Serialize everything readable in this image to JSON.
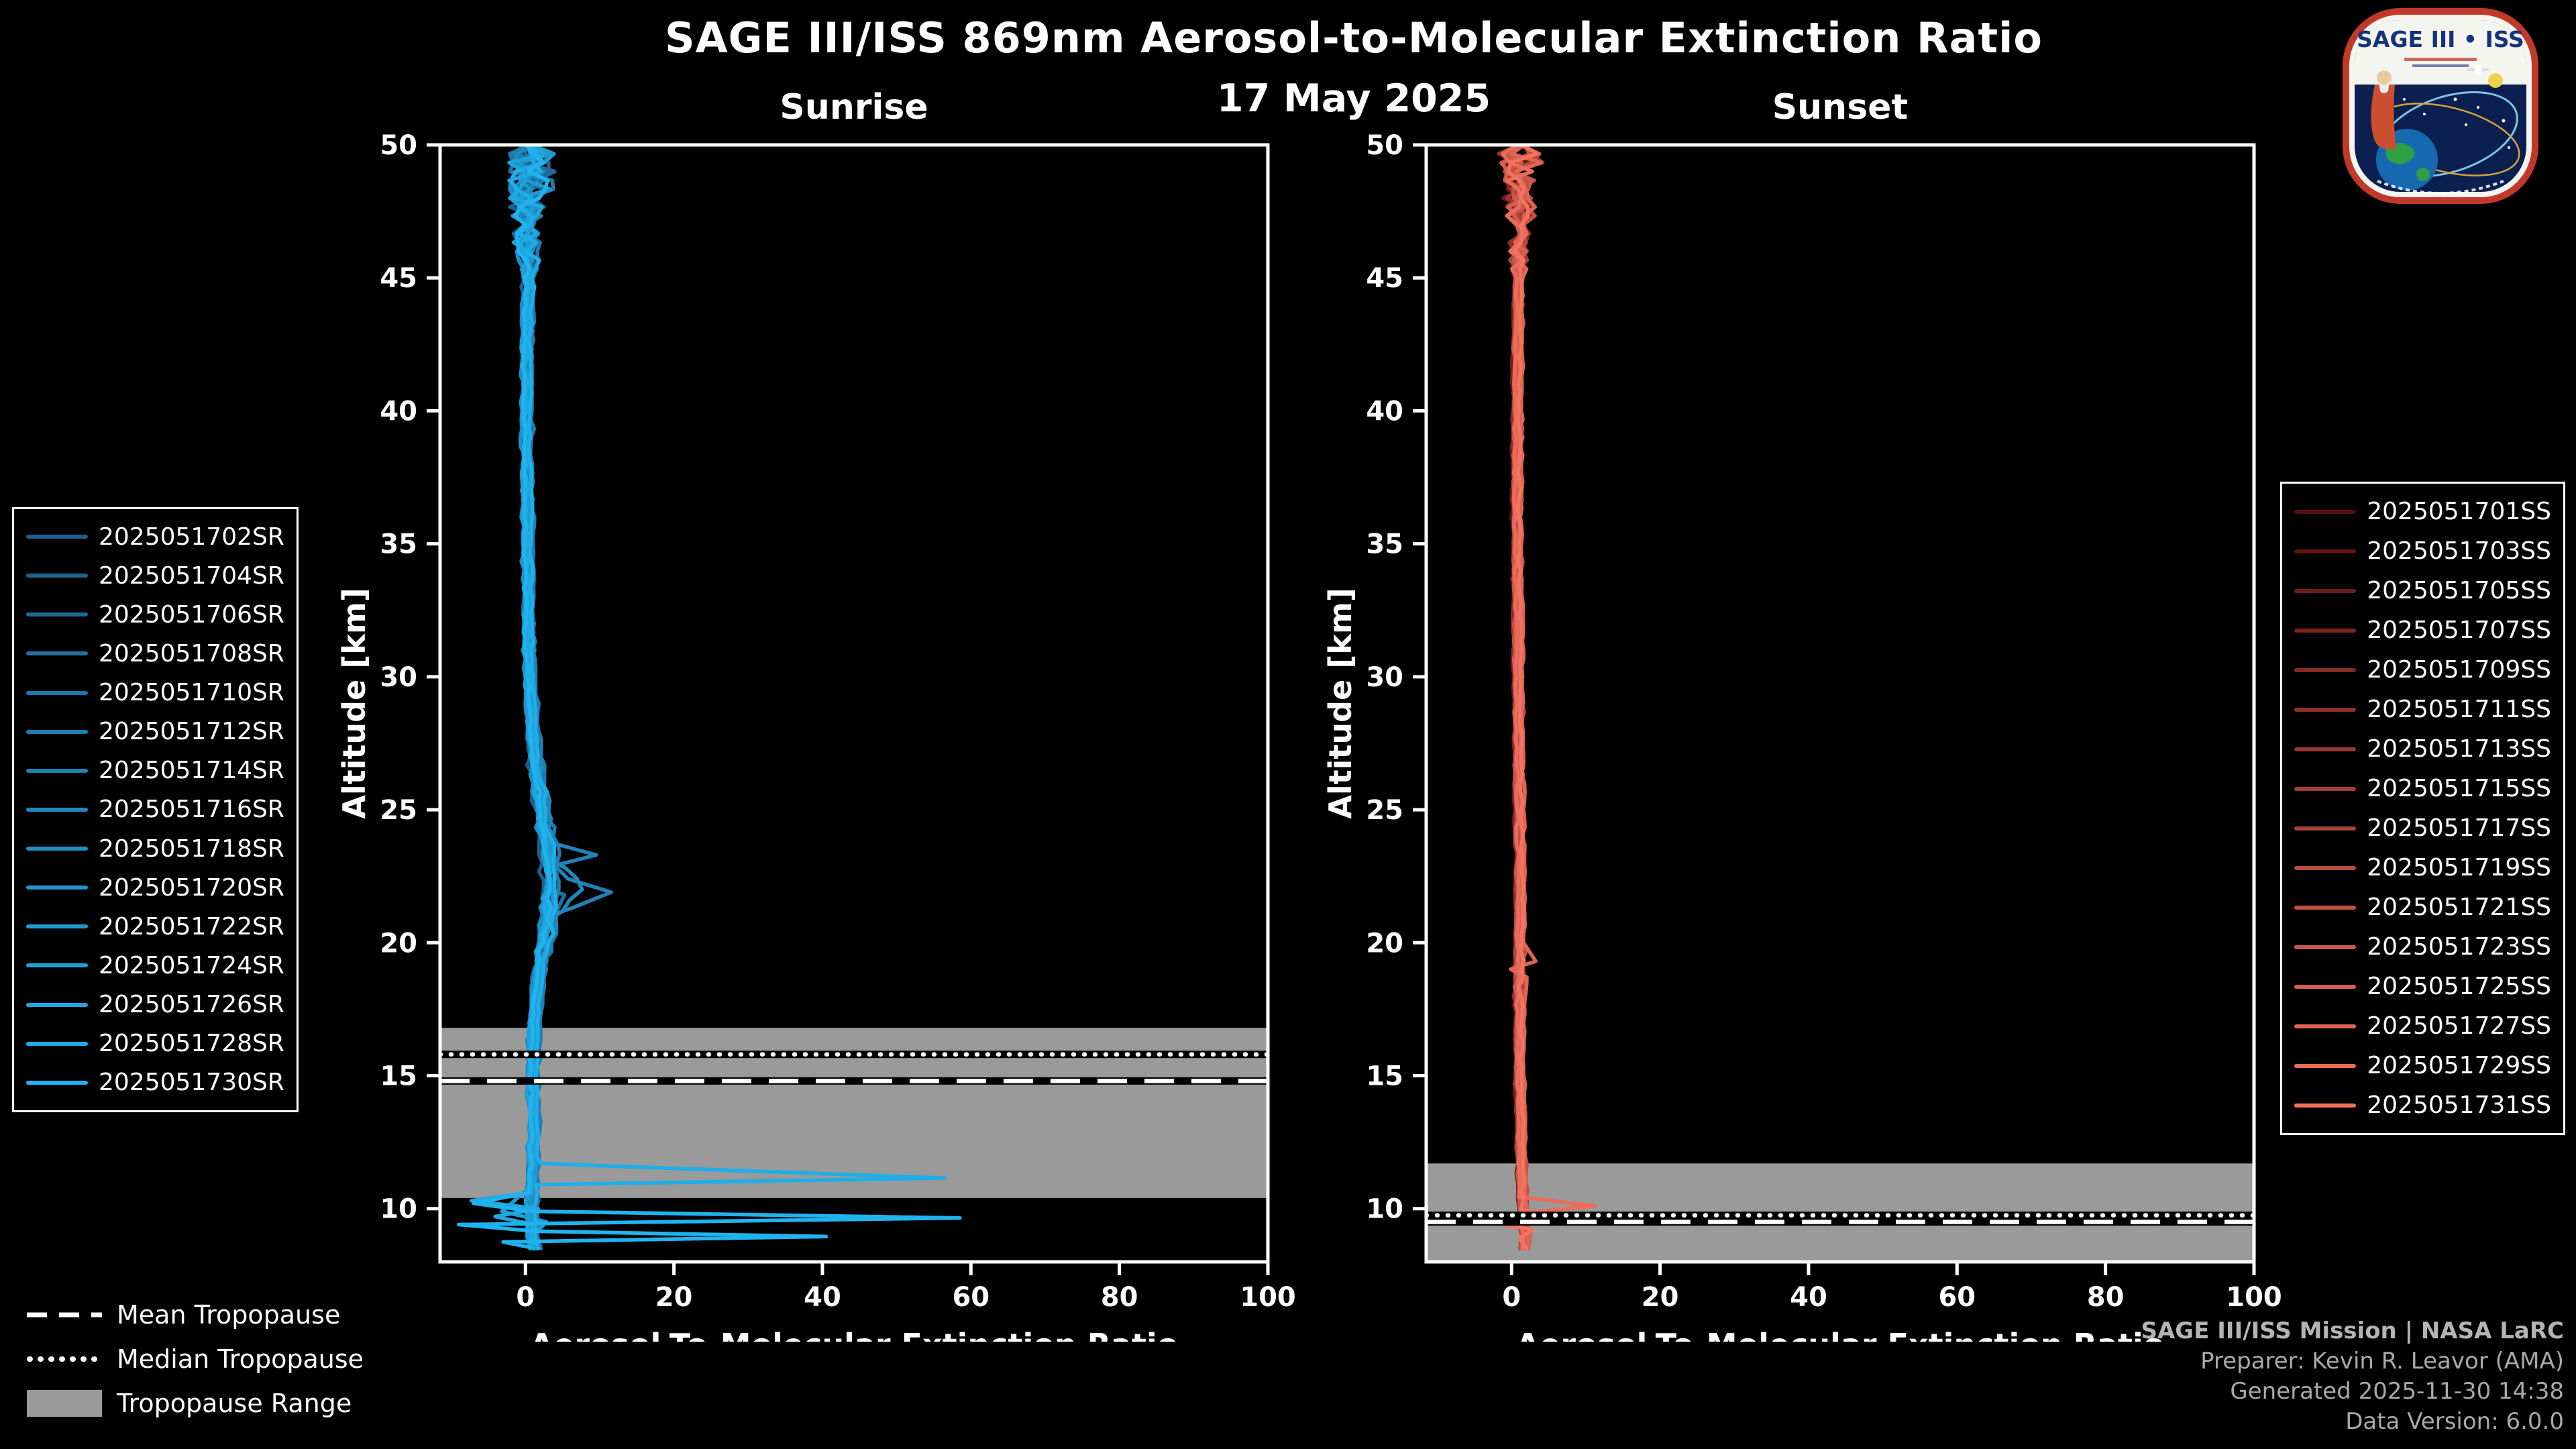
{
  "header": {
    "title": "SAGE III/ISS 869nm Aerosol-to-Molecular Extinction Ratio",
    "date": "17 May 2025"
  },
  "logo": {
    "title": "SAGE III • ISS"
  },
  "tropopause_legend": {
    "mean": "Mean Tropopause",
    "median": "Median Tropopause",
    "range": "Tropopause Range"
  },
  "credits": [
    "SAGE III/ISS Mission | NASA LaRC",
    "Preparer: Kevin R. Leavor (AMA)",
    "Generated 2025-11-30 14:38",
    "Data Version: 6.0.0"
  ],
  "chart_data": [
    {
      "type": "line",
      "id": "sunrise",
      "title": "Sunrise",
      "xlabel": "Aerosol-To-Molecular Extinction Ratio",
      "ylabel": "Altitude [km]",
      "xlim": [
        -11.5,
        100
      ],
      "ylim": [
        8,
        50
      ],
      "xticks": [
        0,
        20,
        40,
        60,
        80,
        100
      ],
      "yticks": [
        10,
        15,
        20,
        25,
        30,
        35,
        40,
        45,
        50
      ],
      "band_color": "#9a9a9a",
      "tropopause": {
        "mean": 14.8,
        "median": 15.8,
        "range": [
          10.4,
          16.8
        ]
      },
      "noise": {
        "base": 0.28,
        "bump": [
          19,
          27
        ],
        "bump_amp": 0.55,
        "top_start": 44.5,
        "top_rate": 0.6
      },
      "base_profile": [
        [
          8.5,
          1.2
        ],
        [
          9.0,
          0.8
        ],
        [
          9.5,
          0.9
        ],
        [
          10.0,
          0.7
        ],
        [
          11.0,
          0.9
        ],
        [
          12.0,
          1.0
        ],
        [
          13.0,
          1.1
        ],
        [
          14.0,
          1.0
        ],
        [
          15.0,
          0.9
        ],
        [
          16.0,
          1.0
        ],
        [
          17.0,
          1.1
        ],
        [
          18.0,
          1.4
        ],
        [
          19.0,
          1.8
        ],
        [
          20.0,
          2.4
        ],
        [
          21.0,
          2.9
        ],
        [
          22.0,
          3.2
        ],
        [
          23.0,
          3.0
        ],
        [
          24.0,
          2.6
        ],
        [
          25.0,
          2.1
        ],
        [
          26.0,
          1.6
        ],
        [
          27.0,
          1.2
        ],
        [
          28.0,
          0.9
        ],
        [
          30.0,
          0.6
        ],
        [
          32.0,
          0.45
        ],
        [
          35.0,
          0.3
        ],
        [
          38.0,
          0.25
        ],
        [
          40.0,
          0.2
        ],
        [
          42.0,
          0.25
        ],
        [
          45.0,
          0.35
        ],
        [
          47.0,
          0.4
        ],
        [
          50.0,
          0.5
        ]
      ],
      "series": [
        {
          "name": "2025051702SR",
          "color": "#1f5f8b",
          "scale": 0.9
        },
        {
          "name": "2025051704SR",
          "color": "#1f6592",
          "scale": 1.0
        },
        {
          "name": "2025051706SR",
          "color": "#1f6b99",
          "scale": 0.85
        },
        {
          "name": "2025051708SR",
          "color": "#1f71a1",
          "scale": 1.1,
          "overrides": [
            [
              21.0,
              4.2
            ],
            [
              21.8,
              5.6
            ],
            [
              22.6,
              4.6
            ],
            [
              23.4,
              3.4
            ]
          ]
        },
        {
          "name": "2025051710SR",
          "color": "#1f77a8",
          "scale": 0.95
        },
        {
          "name": "2025051712SR",
          "color": "#1f7daf",
          "scale": 1.2
        },
        {
          "name": "2025051714SR",
          "color": "#1f83b6",
          "scale": 1.15,
          "overrides": [
            [
              20.5,
              3.2
            ],
            [
              21.3,
              6.5
            ],
            [
              21.9,
              11.8
            ],
            [
              22.4,
              6.0
            ],
            [
              22.9,
              4.2
            ],
            [
              23.3,
              9.8
            ],
            [
              23.8,
              3.2
            ],
            [
              24.4,
              2.4
            ]
          ]
        },
        {
          "name": "2025051716SR",
          "color": "#1f89bd",
          "scale": 1.3,
          "overrides": [
            [
              21.2,
              4.8
            ],
            [
              22.0,
              7.4
            ],
            [
              22.8,
              5.2
            ]
          ]
        },
        {
          "name": "2025051718SR",
          "color": "#1f8fc5",
          "scale": 1.05
        },
        {
          "name": "2025051720SR",
          "color": "#1f95cc",
          "scale": 1.25
        },
        {
          "name": "2025051722SR",
          "color": "#1f9cd3",
          "scale": 0.95,
          "overrides": [
            [
              9.9,
              -3.5
            ],
            [
              9.5,
              2.5
            ]
          ]
        },
        {
          "name": "2025051724SR",
          "color": "#1fa2da",
          "scale": 1.1
        },
        {
          "name": "2025051726SR",
          "color": "#1fa8e1",
          "scale": 1.0,
          "overrides": [
            [
              10.6,
              0.8
            ],
            [
              10.3,
              -7.2
            ],
            [
              10.0,
              1.8
            ],
            [
              9.7,
              -4.0
            ],
            [
              9.4,
              1.2
            ]
          ]
        },
        {
          "name": "2025051728SR",
          "color": "#1faee9",
          "scale": 1.1,
          "overrides": [
            [
              11.7,
              1.6
            ],
            [
              11.15,
              56.0
            ],
            [
              10.9,
              1.0
            ]
          ]
        },
        {
          "name": "2025051730SR",
          "color": "#1fb4f0",
          "scale": 1.2,
          "overrides": [
            [
              10.6,
              1.0
            ],
            [
              10.2,
              -6.5
            ],
            [
              9.9,
              1.5
            ],
            [
              9.65,
              59.0
            ],
            [
              9.4,
              -8.5
            ],
            [
              9.15,
              2.0
            ],
            [
              8.95,
              41.0
            ],
            [
              8.75,
              -2.5
            ],
            [
              8.55,
              1.0
            ]
          ]
        }
      ]
    },
    {
      "type": "line",
      "id": "sunset",
      "title": "Sunset",
      "xlabel": "Aerosol-To-Molecular Extinction Ratio",
      "ylabel": "Altitude [km]",
      "xlim": [
        -11.5,
        100
      ],
      "ylim": [
        8,
        50
      ],
      "xticks": [
        0,
        20,
        40,
        60,
        80,
        100
      ],
      "yticks": [
        10,
        15,
        20,
        25,
        30,
        35,
        40,
        45,
        50
      ],
      "band_color": "#9a9a9a",
      "tropopause": {
        "mean": 9.5,
        "median": 9.75,
        "range": [
          8.0,
          11.7
        ]
      },
      "noise": {
        "base": 0.22,
        "bump": [
          18,
          20
        ],
        "bump_amp": 0.35,
        "top_start": 45,
        "top_rate": 0.5
      },
      "base_profile": [
        [
          8.5,
          1.6
        ],
        [
          9.0,
          1.8
        ],
        [
          9.5,
          1.4
        ],
        [
          10.0,
          1.5
        ],
        [
          11.0,
          1.3
        ],
        [
          12.0,
          1.2
        ],
        [
          13.0,
          1.2
        ],
        [
          14.0,
          1.1
        ],
        [
          15.0,
          1.0
        ],
        [
          17.0,
          1.0
        ],
        [
          20.0,
          1.0
        ],
        [
          23.0,
          1.1
        ],
        [
          25.0,
          1.0
        ],
        [
          28.0,
          0.9
        ],
        [
          30.0,
          0.85
        ],
        [
          33.0,
          0.8
        ],
        [
          35.0,
          0.7
        ],
        [
          38.0,
          0.7
        ],
        [
          40.0,
          0.7
        ],
        [
          43.0,
          0.8
        ],
        [
          45.0,
          0.9
        ],
        [
          47.0,
          1.0
        ],
        [
          50.0,
          1.1
        ]
      ],
      "series": [
        {
          "name": "2025051701SS",
          "color": "#5c0e0e",
          "scale": 1.0
        },
        {
          "name": "2025051703SS",
          "color": "#661513",
          "scale": 0.9
        },
        {
          "name": "2025051705SS",
          "color": "#701b19",
          "scale": 1.1
        },
        {
          "name": "2025051707SS",
          "color": "#7a221e",
          "scale": 1.0
        },
        {
          "name": "2025051709SS",
          "color": "#852924",
          "scale": 0.95
        },
        {
          "name": "2025051711SS",
          "color": "#8f3029",
          "scale": 1.05
        },
        {
          "name": "2025051713SS",
          "color": "#99362f",
          "scale": 0.9
        },
        {
          "name": "2025051715SS",
          "color": "#a33d34",
          "scale": 1.0
        },
        {
          "name": "2025051717SS",
          "color": "#ad4439",
          "scale": 1.1
        },
        {
          "name": "2025051719SS",
          "color": "#b74b3f",
          "scale": 0.95
        },
        {
          "name": "2025051721SS",
          "color": "#c15144",
          "scale": 1.05
        },
        {
          "name": "2025051723SS",
          "color": "#cc584a",
          "scale": 1.0
        },
        {
          "name": "2025051725SS",
          "color": "#d65f4f",
          "scale": 1.0,
          "overrides": [
            [
              9.7,
              3.8
            ],
            [
              9.45,
              0.6
            ]
          ]
        },
        {
          "name": "2025051727SS",
          "color": "#e06554",
          "scale": 0.95,
          "overrides": [
            [
              19.3,
              2.6
            ],
            [
              19.0,
              -0.8
            ],
            [
              18.7,
              1.4
            ]
          ]
        },
        {
          "name": "2025051729SS",
          "color": "#ea6c5a",
          "scale": 1.05,
          "overrides": [
            [
              10.45,
              1.2
            ],
            [
              10.1,
              11.5
            ],
            [
              9.85,
              1.8
            ]
          ]
        },
        {
          "name": "2025051731SS",
          "color": "#f4735f",
          "scale": 1.1,
          "overrides": [
            [
              9.95,
              1.0
            ],
            [
              9.7,
              7.5
            ],
            [
              9.45,
              -1.8
            ],
            [
              9.2,
              2.6
            ],
            [
              8.9,
              0.8
            ]
          ]
        }
      ]
    }
  ]
}
